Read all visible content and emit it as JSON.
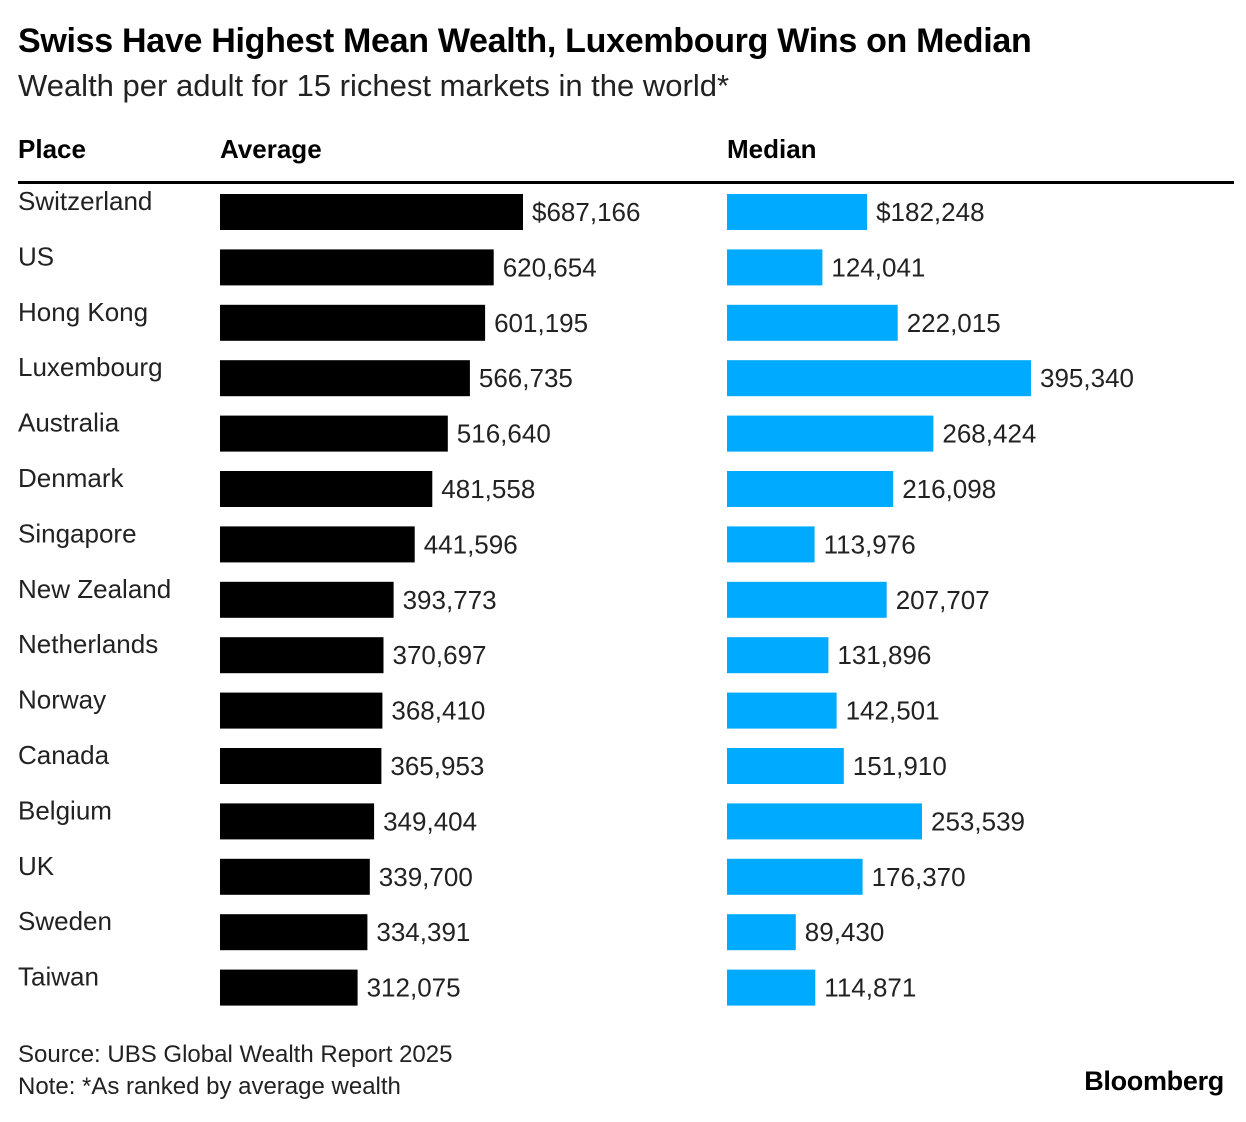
{
  "chart_data": {
    "type": "bar",
    "title": "Swiss Have Highest Mean Wealth, Luxembourg Wins on Median",
    "subtitle": "Wealth per adult for 15 richest markets in the world*",
    "column_headers": {
      "place": "Place",
      "average": "Average",
      "median": "Median"
    },
    "categories": [
      "Switzerland",
      "US",
      "Hong Kong",
      "Luxembourg",
      "Australia",
      "Denmark",
      "Singapore",
      "New Zealand",
      "Netherlands",
      "Norway",
      "Canada",
      "Belgium",
      "UK",
      "Sweden",
      "Taiwan"
    ],
    "series": [
      {
        "name": "Average",
        "color": "#000000",
        "values": [
          687166,
          620654,
          601195,
          566735,
          516640,
          481558,
          441596,
          393773,
          370697,
          368410,
          365953,
          349404,
          339700,
          334391,
          312075
        ],
        "labels": [
          "$687,166",
          "620,654",
          "601,195",
          "566,735",
          "516,640",
          "481,558",
          "441,596",
          "393,773",
          "370,697",
          "368,410",
          "365,953",
          "349,404",
          "339,700",
          "334,391",
          "312,075"
        ]
      },
      {
        "name": "Median",
        "color": "#00aaff",
        "values": [
          182248,
          124041,
          222015,
          395340,
          268424,
          216098,
          113976,
          207707,
          131896,
          142501,
          151910,
          253539,
          176370,
          89430,
          114871
        ],
        "labels": [
          "$182,248",
          "124,041",
          "222,015",
          "395,340",
          "268,424",
          "216,098",
          "113,976",
          "207,707",
          "131,896",
          "142,501",
          "151,910",
          "253,539",
          "176,370",
          "89,430",
          "114,871"
        ]
      }
    ],
    "grid": false,
    "legend": "none"
  },
  "footer": {
    "source": "Source: UBS Global Wealth Report 2025",
    "note": "Note: *As ranked by average wealth"
  },
  "brand": "Bloomberg"
}
